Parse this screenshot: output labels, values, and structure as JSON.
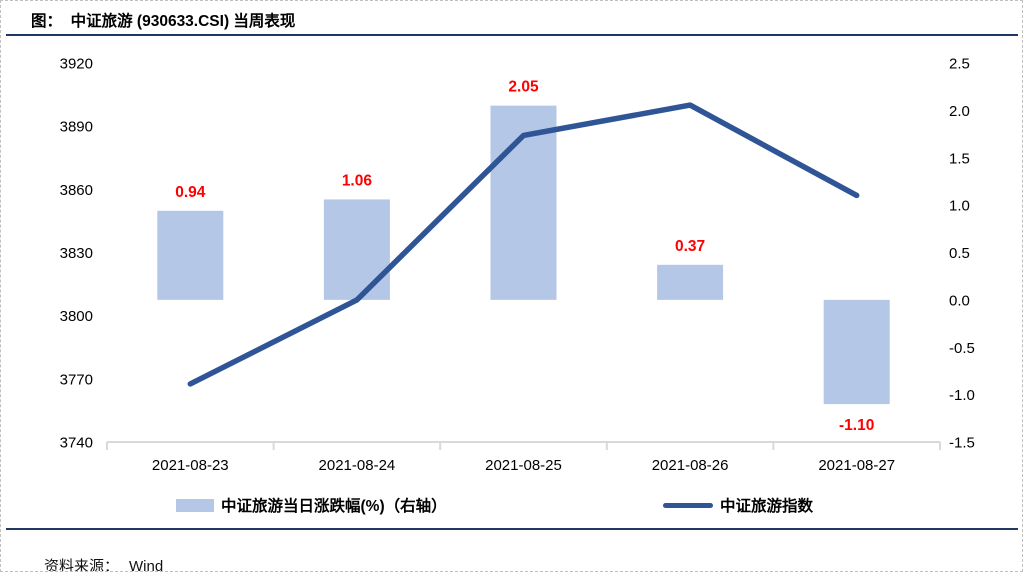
{
  "header": {
    "title": "图：  中证旅游 (930633.CSI) 当周表现"
  },
  "legend": {
    "bar_label": "中证旅游当日涨跌幅(%)（右轴）",
    "line_label": "中证旅游指数"
  },
  "footer": {
    "source_label": "资料来源：",
    "source_value": "Wind"
  },
  "colors": {
    "bar_fill": "#b4c7e7",
    "line_stroke": "#2f5597",
    "value_label": "#ff0000",
    "axis_line": "#d9d9d9",
    "rule_navy": "#1f3864",
    "axis_text": "#000000"
  },
  "chart_data": {
    "type": "bar+line combo",
    "title": "中证旅游 (930633.CSI) 当周表现",
    "categories": [
      "2021-08-23",
      "2021-08-24",
      "2021-08-25",
      "2021-08-26",
      "2021-08-27"
    ],
    "series": [
      {
        "name": "中证旅游当日涨跌幅(%)（右轴）",
        "type": "bar",
        "axis": "right",
        "values": [
          0.94,
          1.06,
          2.05,
          0.37,
          -1.1
        ],
        "value_labels": [
          "0.94",
          "1.06",
          "2.05",
          "0.37",
          "-1.10"
        ]
      },
      {
        "name": "中证旅游指数",
        "type": "line",
        "axis": "left",
        "values": [
          3767.6,
          3807.5,
          3885.6,
          3900.0,
          3857.1
        ]
      }
    ],
    "left_axis": {
      "min": 3740,
      "max": 3920,
      "ticks": [
        3920,
        3890,
        3860,
        3830,
        3800,
        3770,
        3740
      ],
      "tick_labels": [
        "3920",
        "3890",
        "3860",
        "3830",
        "3800",
        "3770",
        "3740"
      ]
    },
    "right_axis": {
      "min": -1.5,
      "max": 2.5,
      "ticks": [
        2.5,
        2.0,
        1.5,
        1.0,
        0.5,
        0.0,
        -0.5,
        -1.0,
        -1.5
      ],
      "tick_labels": [
        "2.5",
        "2.0",
        "1.5",
        "1.0",
        "0.5",
        "0.0",
        "-0.5",
        "-1.0",
        "-1.5"
      ]
    },
    "grid": false,
    "legend_position": "bottom"
  }
}
